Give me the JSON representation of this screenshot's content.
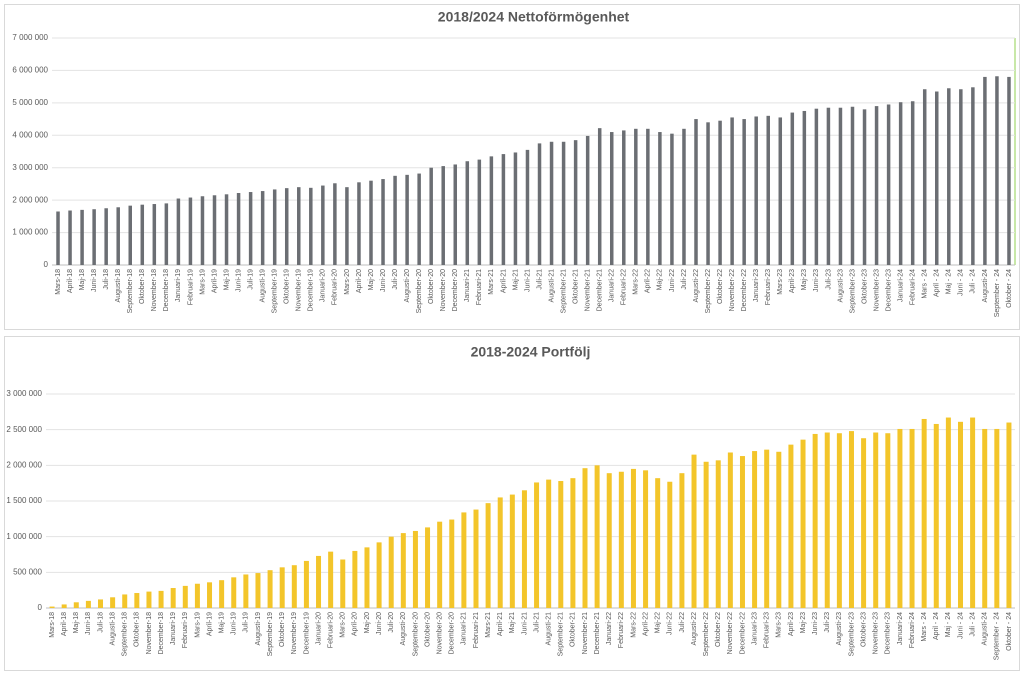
{
  "chart_data": [
    {
      "type": "bar",
      "title": "2018/2024 Nettoförmögenhet",
      "color": "#6b6e73",
      "categories": [
        "Mars-18",
        "April-18",
        "Maj-18",
        "Juni-18",
        "Juli-18",
        "Augusti-18",
        "September-18",
        "Oktober-18",
        "November-18",
        "December-18",
        "Januari-19",
        "Februari-19",
        "Mars-19",
        "April-19",
        "Maj-19",
        "Juni-19",
        "Juli-19",
        "Augusti-19",
        "September-19",
        "Oktober-19",
        "November-19",
        "December-19",
        "Januari-20",
        "Februari-20",
        "Mars-20",
        "April-20",
        "Maj-20",
        "Juni-20",
        "Juli-20",
        "Augusti-20",
        "September-20",
        "Oktober-20",
        "November-20",
        "December-20",
        "Januari-21",
        "Februari-21",
        "Mars-21",
        "April-21",
        "Maj-21",
        "Juni-21",
        "Juli-21",
        "Augusti-21",
        "September-21",
        "Oktober-21",
        "November-21",
        "December-21",
        "Januari-22",
        "Februari-22",
        "Mars-22",
        "April-22",
        "Maj-22",
        "Juni-22",
        "Juli-22",
        "Augusti-22",
        "September-22",
        "Oktober-22",
        "November-22",
        "December-22",
        "Januari-23",
        "Februari-23",
        "Mars-23",
        "April-23",
        "Maj-23",
        "Juni-23",
        "Juli-23",
        "Augusti-23",
        "September-23",
        "Oktober-23",
        "November-23",
        "December-23",
        "Januari-24",
        "Februari-24",
        "Mars - 24",
        "April - 24",
        "Maj - 24",
        "Juni - 24",
        "Juli - 24",
        "Augusti-24",
        "September - 24",
        "Oktober - 24"
      ],
      "values": [
        1650000,
        1680000,
        1700000,
        1720000,
        1750000,
        1780000,
        1830000,
        1860000,
        1880000,
        1900000,
        2050000,
        2080000,
        2120000,
        2150000,
        2180000,
        2220000,
        2250000,
        2280000,
        2330000,
        2370000,
        2400000,
        2380000,
        2450000,
        2520000,
        2400000,
        2550000,
        2600000,
        2650000,
        2750000,
        2780000,
        2820000,
        3000000,
        3050000,
        3100000,
        3200000,
        3250000,
        3350000,
        3420000,
        3470000,
        3550000,
        3750000,
        3800000,
        3800000,
        3850000,
        3980000,
        4220000,
        4100000,
        4150000,
        4200000,
        4200000,
        4100000,
        4050000,
        4200000,
        4500000,
        4400000,
        4450000,
        4550000,
        4500000,
        4580000,
        4600000,
        4550000,
        4700000,
        4750000,
        4820000,
        4850000,
        4850000,
        4880000,
        4800000,
        4900000,
        4950000,
        5020000,
        5050000,
        5420000,
        5350000,
        5450000,
        5420000,
        5480000,
        5800000,
        5820000,
        5800000
      ],
      "ylim": [
        0,
        7000000
      ],
      "yticks": [
        0,
        {
          "value": 1000000,
          "label": "1 000 000"
        },
        {
          "value": 2000000,
          "label": "2 000 000"
        },
        {
          "value": 3000000,
          "label": "3 000 000"
        },
        {
          "value": 4000000,
          "label": "4 000 000"
        },
        {
          "value": 5000000,
          "label": "5 000 000"
        },
        {
          "value": 6000000,
          "label": "6 000 000"
        },
        {
          "value": 7000000,
          "label": "7 000 000"
        }
      ],
      "grid": true
    },
    {
      "type": "bar",
      "title": "2018-2024 Portfölj",
      "color": "#f3c52a",
      "categories": [
        "Mars-18",
        "April-18",
        "Maj-18",
        "Juni-18",
        "Juli-18",
        "Augusti-18",
        "September-18",
        "Oktober-18",
        "November-18",
        "December-18",
        "Januari-19",
        "Februari-19",
        "Mars-19",
        "April-19",
        "Maj-19",
        "Juni-19",
        "Juli-19",
        "Augusti-19",
        "September-19",
        "Oktober-19",
        "November-19",
        "December-19",
        "Januari-20",
        "Februari-20",
        "Mars-20",
        "April-20",
        "Maj-20",
        "Juni-20",
        "Juli-20",
        "Augusti-20",
        "September-20",
        "Oktober-20",
        "November-20",
        "December-20",
        "Januari-21",
        "Februari-21",
        "Mars-21",
        "April-21",
        "Maj-21",
        "Juni-21",
        "Juli-21",
        "Augusti-21",
        "September-21",
        "Oktober-21",
        "November-21",
        "December-21",
        "Januari-22",
        "Februari-22",
        "Mars-22",
        "April-22",
        "Maj-22",
        "Juni-22",
        "Juli-22",
        "Augusti-22",
        "September-22",
        "Oktober-22",
        "November-22",
        "December-22",
        "Januari-23",
        "Februari-23",
        "Mars-23",
        "April-23",
        "Maj-23",
        "Juni-23",
        "Juli-23",
        "Augusti-23",
        "September-23",
        "Oktober-23",
        "November-23",
        "December-23",
        "Januari-24",
        "Februari-24",
        "Mars - 24",
        "April - 24",
        "Maj - 24",
        "Juni - 24",
        "Juli - 24",
        "Augusti-24",
        "September - 24",
        "Oktober - 24"
      ],
      "values": [
        20000,
        50000,
        80000,
        100000,
        120000,
        150000,
        190000,
        210000,
        230000,
        240000,
        280000,
        310000,
        340000,
        360000,
        390000,
        430000,
        470000,
        490000,
        530000,
        570000,
        600000,
        660000,
        730000,
        790000,
        680000,
        800000,
        850000,
        920000,
        1000000,
        1050000,
        1080000,
        1130000,
        1210000,
        1240000,
        1340000,
        1380000,
        1470000,
        1550000,
        1590000,
        1650000,
        1760000,
        1800000,
        1780000,
        1820000,
        1960000,
        2000000,
        1890000,
        1910000,
        1950000,
        1930000,
        1820000,
        1770000,
        1890000,
        2150000,
        2050000,
        2070000,
        2180000,
        2130000,
        2200000,
        2220000,
        2190000,
        2290000,
        2360000,
        2440000,
        2460000,
        2450000,
        2480000,
        2380000,
        2460000,
        2450000,
        2510000,
        2510000,
        2650000,
        2580000,
        2670000,
        2610000,
        2670000,
        2510000,
        2510000,
        2600000
      ],
      "ylim": [
        0,
        3000000
      ],
      "yticks": [
        0,
        {
          "value": 500000,
          "label": "500 000"
        },
        {
          "value": 1000000,
          "label": "1 000 000"
        },
        {
          "value": 1500000,
          "label": "1 500 000"
        },
        {
          "value": 2000000,
          "label": "2 000 000"
        },
        {
          "value": 2500000,
          "label": "2 500 000"
        },
        {
          "value": 3000000,
          "label": "3 000 000"
        }
      ],
      "grid": true
    }
  ]
}
